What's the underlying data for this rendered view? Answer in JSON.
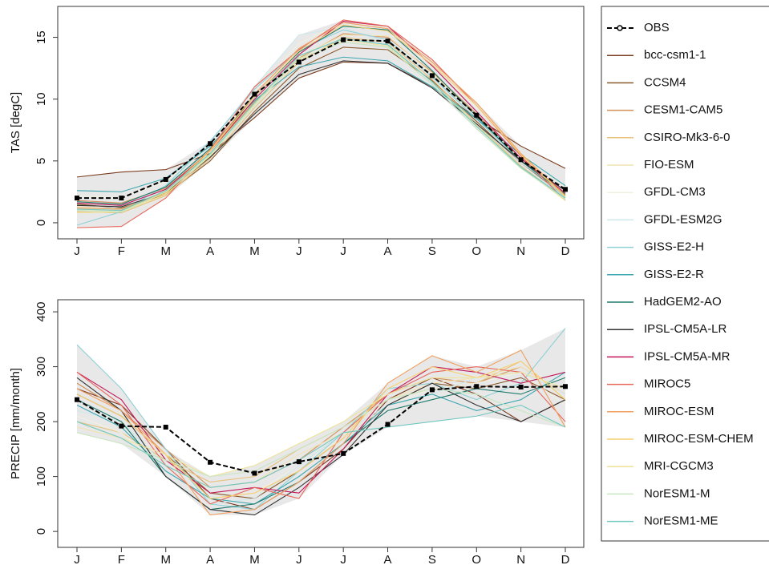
{
  "chart_data": [
    {
      "type": "line",
      "ylabel": "TAS [degC]",
      "categories": [
        "J",
        "F",
        "M",
        "A",
        "M",
        "J",
        "J",
        "A",
        "S",
        "O",
        "N",
        "D"
      ],
      "ylim": [
        -1.3,
        17.5
      ],
      "yticks": [
        0,
        5,
        10,
        15
      ],
      "obs": {
        "name": "OBS",
        "color": "#000000",
        "values": [
          2.0,
          2.0,
          3.5,
          6.4,
          10.4,
          13.0,
          14.8,
          14.7,
          11.9,
          8.7,
          5.1,
          2.7
        ]
      },
      "series": [
        {
          "name": "bcc-csm1-1",
          "color": "#7a3b1f",
          "values": [
            3.7,
            4.1,
            4.3,
            5.6,
            8.5,
            11.7,
            13.0,
            12.9,
            11.0,
            8.5,
            6.2,
            4.4
          ]
        },
        {
          "name": "CCSM4",
          "color": "#8b5a2b",
          "values": [
            1.5,
            1.2,
            2.3,
            5.0,
            9.0,
            12.5,
            14.2,
            14.0,
            11.5,
            8.2,
            4.8,
            2.2
          ]
        },
        {
          "name": "CESM1-CAM5",
          "color": "#d2905a",
          "values": [
            1.8,
            1.6,
            2.8,
            5.8,
            9.8,
            13.3,
            15.3,
            15.0,
            12.2,
            8.8,
            5.2,
            2.4
          ]
        },
        {
          "name": "CSIRO-Mk3-6-0",
          "color": "#e8c07a",
          "values": [
            0.9,
            0.8,
            2.2,
            5.2,
            9.3,
            13.0,
            15.0,
            14.6,
            11.6,
            8.0,
            4.6,
            1.9
          ]
        },
        {
          "name": "FIO-ESM",
          "color": "#f2e3b3",
          "values": [
            1.3,
            1.1,
            2.6,
            5.6,
            9.7,
            13.4,
            15.2,
            15.1,
            12.1,
            8.6,
            5.0,
            2.2
          ]
        },
        {
          "name": "GFDL-CM3",
          "color": "#f0f0e0",
          "values": [
            2.2,
            2.0,
            3.3,
            6.2,
            10.6,
            14.5,
            16.2,
            15.8,
            12.8,
            9.3,
            5.6,
            2.9
          ]
        },
        {
          "name": "GFDL-ESM2G",
          "color": "#cfe8ea",
          "values": [
            1.0,
            1.3,
            3.0,
            6.5,
            11.0,
            15.2,
            15.8,
            14.5,
            11.3,
            8.0,
            4.8,
            2.0
          ]
        },
        {
          "name": "GISS-E2-H",
          "color": "#8fd0d6",
          "values": [
            -0.2,
            0.9,
            3.0,
            6.6,
            10.8,
            14.0,
            15.6,
            14.8,
            11.8,
            8.4,
            5.0,
            2.1
          ]
        },
        {
          "name": "GISS-E2-R",
          "color": "#3ea7b0",
          "values": [
            2.6,
            2.5,
            3.6,
            6.2,
            9.9,
            12.6,
            13.4,
            13.1,
            11.0,
            8.4,
            5.5,
            3.0
          ]
        },
        {
          "name": "HadGEM2-AO",
          "color": "#1e7a6b",
          "values": [
            1.7,
            1.5,
            2.9,
            6.0,
            10.2,
            13.8,
            15.9,
            15.6,
            12.3,
            8.6,
            5.0,
            2.3
          ]
        },
        {
          "name": "IPSL-CM5A-LR",
          "color": "#333333",
          "values": [
            1.4,
            1.3,
            2.4,
            5.3,
            8.8,
            12.0,
            13.1,
            12.9,
            10.9,
            8.0,
            5.0,
            2.6
          ]
        },
        {
          "name": "IPSL-CM5A-MR",
          "color": "#c2185b",
          "values": [
            1.6,
            1.4,
            2.7,
            5.8,
            10.0,
            13.6,
            16.3,
            15.9,
            12.7,
            9.0,
            5.2,
            2.4
          ]
        },
        {
          "name": "MIROC5",
          "color": "#e8665a",
          "values": [
            -0.4,
            -0.3,
            2.0,
            5.9,
            11.0,
            14.0,
            16.4,
            15.9,
            13.2,
            9.5,
            5.4,
            1.8
          ]
        },
        {
          "name": "MIROC-ESM",
          "color": "#f0a060",
          "values": [
            1.2,
            1.1,
            2.5,
            5.9,
            10.4,
            14.1,
            16.2,
            15.7,
            13.0,
            9.7,
            5.6,
            2.2
          ]
        },
        {
          "name": "MIROC-ESM-CHEM",
          "color": "#f7d070",
          "values": [
            1.1,
            1.0,
            2.4,
            5.8,
            10.2,
            13.9,
            16.0,
            15.5,
            12.8,
            9.5,
            5.5,
            2.1
          ]
        },
        {
          "name": "MRI-CGCM3",
          "color": "#efe39a",
          "values": [
            0.8,
            0.9,
            2.3,
            5.4,
            9.6,
            13.2,
            14.8,
            14.3,
            11.4,
            7.9,
            4.5,
            1.8
          ]
        },
        {
          "name": "NorESM1-M",
          "color": "#c8e6c0",
          "values": [
            1.0,
            0.9,
            2.5,
            5.5,
            9.5,
            13.3,
            14.6,
            14.2,
            11.2,
            7.6,
            4.4,
            1.9
          ]
        },
        {
          "name": "NorESM1-ME",
          "color": "#70c8c0",
          "values": [
            1.1,
            1.0,
            2.6,
            5.6,
            9.7,
            13.5,
            14.9,
            14.4,
            11.4,
            7.8,
            4.5,
            2.0
          ]
        }
      ]
    },
    {
      "type": "line",
      "ylabel": "PRECIP [mm/month]",
      "categories": [
        "J",
        "F",
        "M",
        "A",
        "M",
        "J",
        "J",
        "A",
        "S",
        "O",
        "N",
        "D"
      ],
      "ylim": [
        -29,
        422
      ],
      "yticks": [
        0,
        100,
        200,
        300,
        400
      ],
      "obs": {
        "values": [
          240,
          192,
          190,
          126,
          106,
          127,
          142,
          195,
          258,
          264,
          263,
          264
        ]
      },
      "series": [
        {
          "values": [
            260,
            230,
            150,
            60,
            40,
            90,
            150,
            240,
            280,
            250,
            200,
            240
          ]
        },
        {
          "values": [
            250,
            210,
            140,
            70,
            60,
            110,
            170,
            230,
            270,
            260,
            280,
            240
          ]
        },
        {
          "values": [
            270,
            220,
            150,
            80,
            90,
            130,
            190,
            250,
            280,
            270,
            300,
            250
          ]
        },
        {
          "values": [
            200,
            180,
            130,
            90,
            100,
            150,
            190,
            240,
            260,
            270,
            310,
            240
          ]
        },
        {
          "values": [
            190,
            170,
            120,
            80,
            90,
            140,
            180,
            240,
            270,
            280,
            300,
            250
          ]
        },
        {
          "values": [
            210,
            180,
            110,
            60,
            70,
            120,
            170,
            230,
            260,
            270,
            290,
            230
          ]
        },
        {
          "values": [
            220,
            200,
            120,
            50,
            60,
            120,
            180,
            230,
            250,
            280,
            290,
            250
          ]
        },
        {
          "values": [
            340,
            260,
            150,
            50,
            40,
            110,
            180,
            260,
            270,
            240,
            270,
            370
          ]
        },
        {
          "values": [
            230,
            190,
            110,
            60,
            50,
            100,
            160,
            230,
            250,
            220,
            240,
            290
          ]
        },
        {
          "values": [
            240,
            200,
            100,
            40,
            50,
            90,
            160,
            220,
            240,
            260,
            250,
            280
          ]
        },
        {
          "values": [
            280,
            220,
            100,
            40,
            30,
            80,
            140,
            230,
            270,
            230,
            200,
            240
          ]
        },
        {
          "values": [
            290,
            240,
            130,
            70,
            80,
            70,
            150,
            250,
            300,
            290,
            270,
            290
          ]
        },
        {
          "values": [
            290,
            230,
            120,
            50,
            80,
            60,
            180,
            250,
            290,
            300,
            290,
            200
          ]
        },
        {
          "values": [
            260,
            220,
            140,
            30,
            40,
            90,
            160,
            270,
            320,
            290,
            330,
            190
          ]
        },
        {
          "values": [
            250,
            210,
            140,
            60,
            70,
            110,
            170,
            260,
            300,
            280,
            310,
            240
          ]
        },
        {
          "values": [
            200,
            170,
            140,
            100,
            120,
            160,
            200,
            250,
            280,
            280,
            290,
            260
          ]
        },
        {
          "values": [
            180,
            160,
            130,
            100,
            110,
            150,
            190,
            240,
            260,
            250,
            220,
            190
          ]
        },
        {
          "values": [
            200,
            170,
            120,
            80,
            90,
            130,
            180,
            190,
            200,
            210,
            230,
            190
          ]
        }
      ]
    }
  ]
}
